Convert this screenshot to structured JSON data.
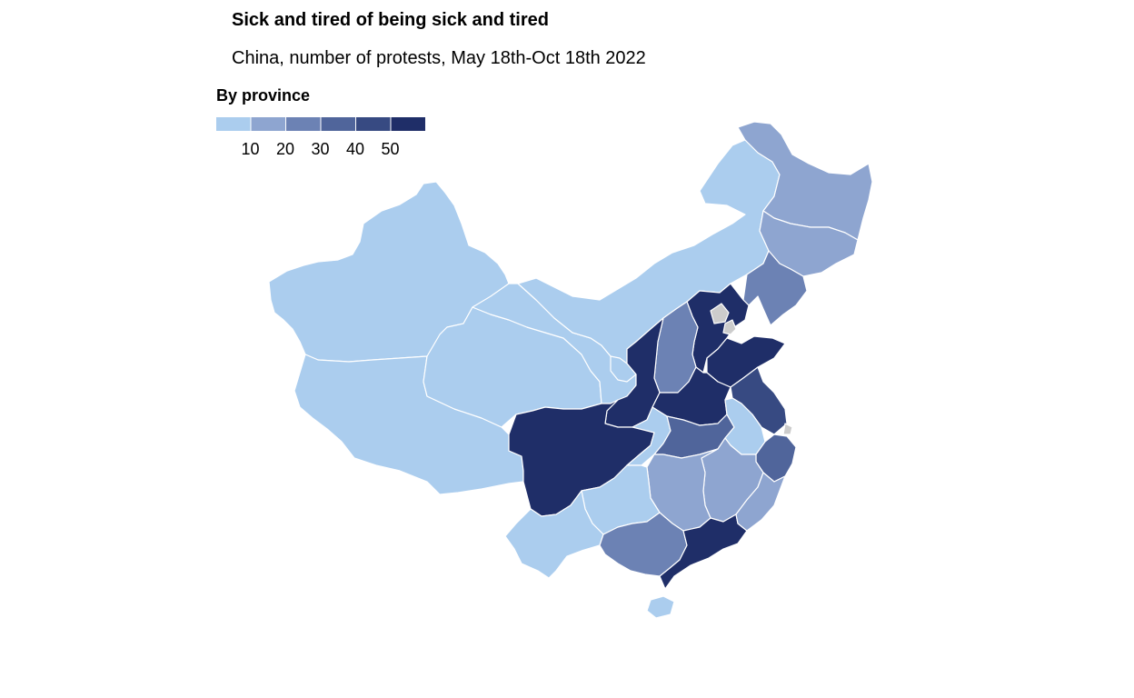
{
  "title": "Sick and tired of being sick and tired",
  "subtitle": "China, number of protests, May 18th-Oct 18th 2022",
  "legend": {
    "title": "By province",
    "ticks": [
      "10",
      "20",
      "30",
      "40",
      "50"
    ],
    "bins": [
      {
        "min": 0,
        "max": 10,
        "color": "#abcdee"
      },
      {
        "min": 10,
        "max": 20,
        "color": "#8ea5d0"
      },
      {
        "min": 20,
        "max": 30,
        "color": "#6c82b4"
      },
      {
        "min": 30,
        "max": 40,
        "color": "#50659b"
      },
      {
        "min": 40,
        "max": 50,
        "color": "#374a82"
      },
      {
        "min": 50,
        "max": 60,
        "color": "#1f2e68"
      }
    ]
  },
  "no_data_color": "#cccccc",
  "chart_data": {
    "type": "choropleth",
    "regions": [
      {
        "name": "Xinjiang",
        "value": 5
      },
      {
        "name": "Tibet",
        "value": 5
      },
      {
        "name": "Qinghai",
        "value": 5
      },
      {
        "name": "Gansu",
        "value": 5
      },
      {
        "name": "Inner Mongolia",
        "value": 5
      },
      {
        "name": "Heilongjiang",
        "value": 15
      },
      {
        "name": "Jilin",
        "value": 15
      },
      {
        "name": "Liaoning",
        "value": 25
      },
      {
        "name": "Hebei",
        "value": 55
      },
      {
        "name": "Beijing",
        "value": null
      },
      {
        "name": "Tianjin",
        "value": null
      },
      {
        "name": "Shanxi",
        "value": 25
      },
      {
        "name": "Shaanxi",
        "value": 55
      },
      {
        "name": "Ningxia",
        "value": 5
      },
      {
        "name": "Shandong",
        "value": 55
      },
      {
        "name": "Henan",
        "value": 55
      },
      {
        "name": "Sichuan",
        "value": 55
      },
      {
        "name": "Chongqing",
        "value": 5
      },
      {
        "name": "Hubei",
        "value": 35
      },
      {
        "name": "Jiangsu",
        "value": 45
      },
      {
        "name": "Anhui",
        "value": 5
      },
      {
        "name": "Shanghai",
        "value": null
      },
      {
        "name": "Zhejiang",
        "value": 35
      },
      {
        "name": "Jiangxi",
        "value": 15
      },
      {
        "name": "Hunan",
        "value": 15
      },
      {
        "name": "Guizhou",
        "value": 5
      },
      {
        "name": "Yunnan",
        "value": 5
      },
      {
        "name": "Guangxi",
        "value": 25
      },
      {
        "name": "Guangdong",
        "value": 55
      },
      {
        "name": "Fujian",
        "value": 15
      },
      {
        "name": "Hainan",
        "value": 5
      }
    ]
  }
}
